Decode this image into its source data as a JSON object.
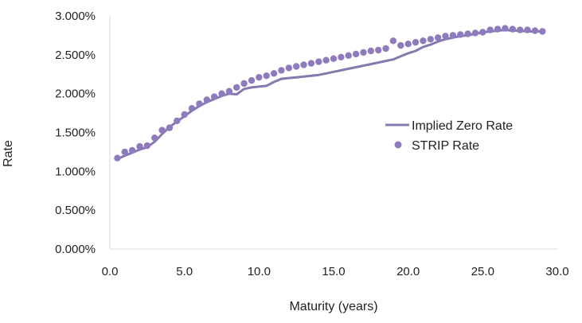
{
  "chart_data": {
    "type": "line",
    "title": "",
    "xlabel": "Maturity (years)",
    "ylabel": "Rate",
    "xlim": [
      0,
      30
    ],
    "ylim": [
      0,
      3.0
    ],
    "x_ticks": [
      "0.0",
      "5.0",
      "10.0",
      "15.0",
      "20.0",
      "25.0",
      "30.0"
    ],
    "y_ticks": [
      "0.000%",
      "0.500%",
      "1.000%",
      "1.500%",
      "2.000%",
      "2.500%",
      "3.000%"
    ],
    "grid": false,
    "legend_position": "right",
    "series": [
      {
        "name": "Implied Zero Rate",
        "style": "line",
        "color": "#8579ae",
        "x": [
          0.5,
          1.0,
          1.5,
          2.0,
          2.5,
          3.0,
          3.5,
          4.0,
          4.5,
          5.0,
          5.5,
          6.0,
          6.5,
          7.0,
          7.5,
          8.0,
          8.5,
          9.0,
          9.5,
          10.0,
          10.5,
          11.0,
          11.5,
          12.0,
          12.5,
          13.0,
          13.5,
          14.0,
          14.5,
          15.0,
          15.5,
          16.0,
          16.5,
          17.0,
          17.5,
          18.0,
          18.5,
          19.0,
          19.5,
          20.0,
          20.5,
          21.0,
          21.5,
          22.0,
          22.5,
          23.0,
          23.5,
          24.0,
          24.5,
          25.0,
          25.5,
          26.0,
          26.5,
          27.0,
          27.5,
          28.0,
          28.5,
          29.0
        ],
        "values": [
          1.16,
          1.2,
          1.24,
          1.28,
          1.31,
          1.38,
          1.48,
          1.57,
          1.64,
          1.71,
          1.78,
          1.84,
          1.89,
          1.93,
          1.97,
          2.0,
          1.99,
          2.06,
          2.08,
          2.09,
          2.1,
          2.15,
          2.19,
          2.2,
          2.21,
          2.22,
          2.23,
          2.24,
          2.26,
          2.28,
          2.3,
          2.32,
          2.34,
          2.36,
          2.38,
          2.4,
          2.42,
          2.44,
          2.48,
          2.52,
          2.55,
          2.6,
          2.63,
          2.67,
          2.7,
          2.72,
          2.74,
          2.75,
          2.77,
          2.79,
          2.8,
          2.81,
          2.82,
          2.81,
          2.81,
          2.8,
          2.8,
          2.8
        ]
      },
      {
        "name": "STRIP Rate",
        "style": "scatter",
        "color": "#8d7bbd",
        "x": [
          0.5,
          1.0,
          1.5,
          2.0,
          2.5,
          3.0,
          3.5,
          4.0,
          4.5,
          5.0,
          5.5,
          6.0,
          6.5,
          7.0,
          7.5,
          8.0,
          8.5,
          9.0,
          9.5,
          10.0,
          10.5,
          11.0,
          11.5,
          12.0,
          12.5,
          13.0,
          13.5,
          14.0,
          14.5,
          15.0,
          15.5,
          16.0,
          16.5,
          17.0,
          17.5,
          18.0,
          18.5,
          19.0,
          19.5,
          20.0,
          20.5,
          21.0,
          21.5,
          22.0,
          22.5,
          23.0,
          23.5,
          24.0,
          24.5,
          25.0,
          25.5,
          26.0,
          26.5,
          27.0,
          27.5,
          28.0,
          28.5,
          29.0
        ],
        "values": [
          1.17,
          1.25,
          1.27,
          1.32,
          1.33,
          1.43,
          1.53,
          1.56,
          1.65,
          1.73,
          1.81,
          1.87,
          1.92,
          1.96,
          2.0,
          2.03,
          2.08,
          2.13,
          2.17,
          2.21,
          2.23,
          2.26,
          2.3,
          2.33,
          2.35,
          2.37,
          2.39,
          2.41,
          2.43,
          2.45,
          2.47,
          2.49,
          2.51,
          2.53,
          2.55,
          2.56,
          2.58,
          2.68,
          2.62,
          2.64,
          2.66,
          2.68,
          2.7,
          2.72,
          2.74,
          2.75,
          2.76,
          2.77,
          2.78,
          2.79,
          2.82,
          2.83,
          2.84,
          2.83,
          2.82,
          2.82,
          2.81,
          2.8
        ]
      }
    ]
  }
}
